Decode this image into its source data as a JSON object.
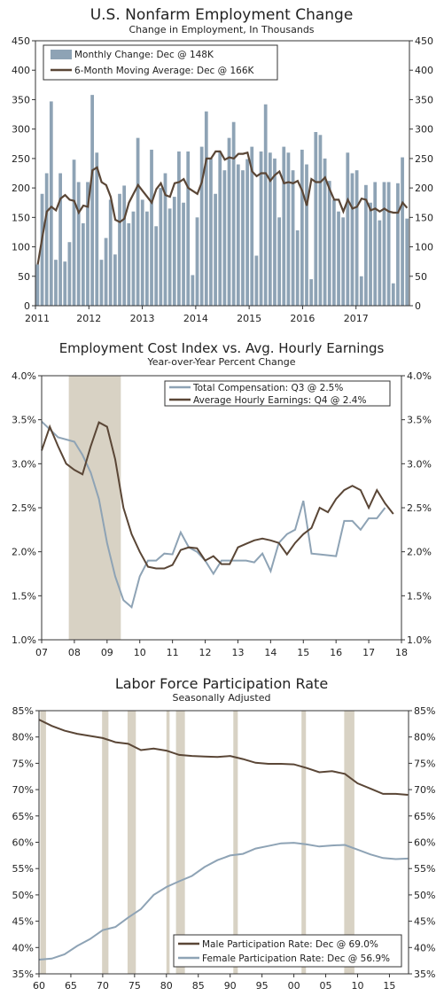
{
  "colors": {
    "bar": "#8ea3b5",
    "brown": "#5a4636",
    "blue": "#8ea3b5",
    "shade": "#d8d2c4"
  },
  "chart_data": [
    {
      "type": "bar",
      "title": "U.S. Nonfarm Employment Change",
      "subtitle": "Change in Employment, In Thousands",
      "ylim": [
        0,
        450
      ],
      "yticks": [
        "0",
        "50",
        "100",
        "150",
        "200",
        "250",
        "300",
        "350",
        "400",
        "450"
      ],
      "xticks": [
        "2011",
        "2012",
        "2013",
        "2014",
        "2015",
        "2016",
        "2017"
      ],
      "series": [
        {
          "name": "Monthly Change: Dec @ 148K",
          "type": "bar",
          "values": [
            70,
            190,
            225,
            347,
            78,
            225,
            75,
            108,
            248,
            210,
            140,
            210,
            358,
            260,
            78,
            115,
            180,
            87,
            190,
            204,
            140,
            160,
            285,
            180,
            160,
            265,
            135,
            200,
            225,
            165,
            185,
            262,
            175,
            262,
            52,
            150,
            270,
            330,
            250,
            190,
            262,
            230,
            285,
            312,
            240,
            230,
            249,
            270,
            85,
            262,
            342,
            260,
            250,
            150,
            270,
            260,
            230,
            128,
            265,
            240,
            45,
            295,
            290,
            250,
            212,
            180,
            160,
            150,
            260,
            225,
            230,
            50,
            205,
            175,
            210,
            145,
            210,
            210,
            38,
            208,
            252,
            148
          ]
        },
        {
          "name": "6-Month Moving Average: Dec @ 166K",
          "type": "line",
          "values": [
            70,
            116,
            160,
            168,
            162,
            182,
            188,
            180,
            178,
            158,
            170,
            168,
            230,
            235,
            210,
            205,
            185,
            146,
            142,
            148,
            175,
            190,
            205,
            195,
            185,
            175,
            198,
            208,
            188,
            185,
            208,
            210,
            215,
            200,
            195,
            190,
            210,
            250,
            250,
            262,
            262,
            248,
            252,
            250,
            258,
            258,
            260,
            228,
            220,
            225,
            225,
            212,
            222,
            228,
            208,
            210,
            208,
            212,
            195,
            170,
            215,
            210,
            210,
            218,
            198,
            180,
            180,
            160,
            180,
            165,
            168,
            182,
            180,
            162,
            165,
            160,
            165,
            160,
            158,
            158,
            175,
            166
          ]
        }
      ]
    },
    {
      "type": "line",
      "title": "Employment Cost Index vs. Avg. Hourly Earnings",
      "subtitle": "Year-over-Year Percent Change",
      "ylim": [
        1.0,
        4.0
      ],
      "yticks": [
        "1.0%",
        "1.5%",
        "2.0%",
        "2.5%",
        "3.0%",
        "3.5%",
        "4.0%"
      ],
      "xticks": [
        "07",
        "08",
        "09",
        "10",
        "11",
        "12",
        "13",
        "14",
        "15",
        "16",
        "17",
        "18"
      ],
      "shading": [
        [
          2007.83,
          2009.42
        ]
      ],
      "series": [
        {
          "name": "Total Compensation: Q3 @ 2.5%",
          "x": [
            2007.0,
            2007.5,
            2008.0,
            2008.25,
            2008.5,
            2008.75,
            2009.0,
            2009.25,
            2009.5,
            2009.75,
            2010.0,
            2010.25,
            2010.5,
            2010.75,
            2011.0,
            2011.25,
            2011.5,
            2011.75,
            2012.0,
            2012.25,
            2012.5,
            2012.75,
            2013.0,
            2013.25,
            2013.5,
            2013.75,
            2014.0,
            2014.25,
            2014.5,
            2014.75,
            2015.0,
            2015.25,
            2015.5,
            2015.75,
            2016.0,
            2016.25,
            2016.5,
            2016.75,
            2017.0,
            2017.25,
            2017.5
          ],
          "values": [
            3.48,
            3.3,
            3.25,
            3.1,
            2.9,
            2.6,
            2.1,
            1.72,
            1.45,
            1.37,
            1.72,
            1.9,
            1.9,
            1.98,
            1.97,
            2.22,
            2.05,
            2.0,
            1.9,
            1.75,
            1.9,
            1.9,
            1.9,
            1.9,
            1.88,
            1.98,
            1.78,
            2.1,
            2.2,
            2.25,
            2.58,
            1.98,
            1.97,
            1.96,
            1.95,
            2.35,
            2.35,
            2.25,
            2.38,
            2.38,
            2.5
          ]
        },
        {
          "name": "Average Hourly Earnings: Q4 @ 2.4%",
          "x": [
            2007.0,
            2007.25,
            2007.5,
            2007.75,
            2008.0,
            2008.25,
            2008.5,
            2008.75,
            2009.0,
            2009.25,
            2009.5,
            2009.75,
            2010.0,
            2010.25,
            2010.5,
            2010.75,
            2011.0,
            2011.25,
            2011.5,
            2011.75,
            2012.0,
            2012.25,
            2012.5,
            2012.75,
            2013.0,
            2013.25,
            2013.5,
            2013.75,
            2014.0,
            2014.25,
            2014.5,
            2014.75,
            2015.0,
            2015.25,
            2015.5,
            2015.75,
            2016.0,
            2016.25,
            2016.5,
            2016.75,
            2017.0,
            2017.25,
            2017.5,
            2017.75
          ],
          "values": [
            3.15,
            3.42,
            3.2,
            3.0,
            2.93,
            2.88,
            3.2,
            3.47,
            3.42,
            3.05,
            2.5,
            2.2,
            2.0,
            1.83,
            1.81,
            1.81,
            1.85,
            2.02,
            2.05,
            2.04,
            1.9,
            1.95,
            1.86,
            1.86,
            2.05,
            2.09,
            2.13,
            2.15,
            2.13,
            2.1,
            1.97,
            2.1,
            2.2,
            2.27,
            2.5,
            2.45,
            2.6,
            2.7,
            2.75,
            2.7,
            2.5,
            2.7,
            2.55,
            2.43
          ]
        }
      ]
    },
    {
      "type": "line",
      "title": "Labor Force Participation Rate",
      "subtitle": "Seasonally Adjusted",
      "ylim": [
        35,
        85
      ],
      "yticks": [
        "35%",
        "40%",
        "45%",
        "50%",
        "55%",
        "60%",
        "65%",
        "70%",
        "75%",
        "80%",
        "85%"
      ],
      "xticks": [
        "60",
        "65",
        "70",
        "75",
        "80",
        "85",
        "90",
        "95",
        "00",
        "05",
        "10",
        "15"
      ],
      "shading": [
        [
          1960.2,
          1961.1
        ],
        [
          1969.9,
          1970.9
        ],
        [
          1973.9,
          1975.2
        ],
        [
          1980.0,
          1980.5
        ],
        [
          1981.5,
          1982.9
        ],
        [
          1990.5,
          1991.2
        ],
        [
          2001.2,
          2001.9
        ],
        [
          2007.9,
          2009.5
        ]
      ],
      "series": [
        {
          "name": "Male Participation Rate: Dec @ 69.0%",
          "x": [
            1960,
            1962,
            1964,
            1966,
            1968,
            1970,
            1972,
            1974,
            1976,
            1978,
            1980,
            1982,
            1984,
            1986,
            1988,
            1990,
            1992,
            1994,
            1996,
            1998,
            2000,
            2002,
            2004,
            2006,
            2008,
            2010,
            2012,
            2014,
            2016,
            2017.9
          ],
          "values": [
            83.3,
            82.1,
            81.2,
            80.6,
            80.2,
            79.8,
            79.0,
            78.7,
            77.5,
            77.8,
            77.4,
            76.6,
            76.4,
            76.3,
            76.2,
            76.4,
            75.8,
            75.1,
            74.9,
            74.9,
            74.8,
            74.1,
            73.3,
            73.5,
            73.0,
            71.2,
            70.2,
            69.2,
            69.2,
            69.0
          ]
        },
        {
          "name": "Female Participation Rate: Dec @ 56.9%",
          "x": [
            1960,
            1962,
            1964,
            1966,
            1968,
            1970,
            1972,
            1974,
            1976,
            1978,
            1980,
            1982,
            1984,
            1986,
            1988,
            1990,
            1992,
            1994,
            1996,
            1998,
            2000,
            2002,
            2004,
            2006,
            2008,
            2010,
            2012,
            2014,
            2016,
            2017.9
          ],
          "values": [
            37.7,
            37.9,
            38.7,
            40.3,
            41.6,
            43.3,
            43.9,
            45.7,
            47.3,
            50.0,
            51.5,
            52.6,
            53.6,
            55.3,
            56.6,
            57.5,
            57.8,
            58.8,
            59.3,
            59.8,
            59.9,
            59.6,
            59.2,
            59.4,
            59.5,
            58.6,
            57.7,
            57.0,
            56.8,
            56.9
          ]
        }
      ]
    }
  ]
}
